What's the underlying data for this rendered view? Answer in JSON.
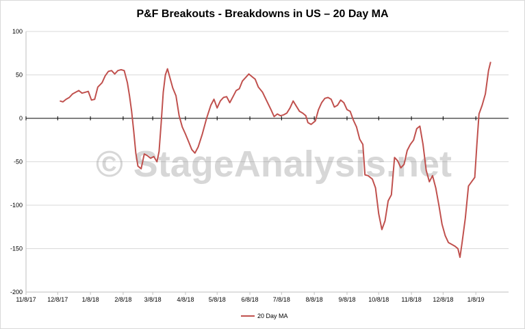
{
  "chart_data": {
    "type": "line",
    "title": "P&F Breakouts - Breakdowns in US – 20 Day MA",
    "xlabel": "",
    "ylabel": "",
    "ylim": [
      -200,
      100
    ],
    "yticks": [
      100,
      50,
      0,
      -50,
      -100,
      -150,
      -200
    ],
    "xticks": [
      "11/8/17",
      "12/8/17",
      "1/8/18",
      "2/8/18",
      "3/8/18",
      "4/8/18",
      "5/8/18",
      "6/8/18",
      "7/8/18",
      "8/8/18",
      "9/8/18",
      "10/8/18",
      "11/8/18",
      "12/8/18",
      "1/8/19"
    ],
    "xlim": [
      "2017-11-08",
      "2019-02-08"
    ],
    "gridlines": "horizontal",
    "legend_position": "bottom",
    "series": [
      {
        "name": "20 Day MA",
        "color": "#c0504d",
        "points": [
          [
            "2017-12-10",
            20
          ],
          [
            "2017-12-13",
            19
          ],
          [
            "2017-12-16",
            22
          ],
          [
            "2017-12-19",
            24
          ],
          [
            "2017-12-22",
            28
          ],
          [
            "2017-12-25",
            30
          ],
          [
            "2017-12-28",
            32
          ],
          [
            "2017-12-31",
            29
          ],
          [
            "2018-01-03",
            30
          ],
          [
            "2018-01-06",
            31
          ],
          [
            "2018-01-09",
            21
          ],
          [
            "2018-01-12",
            22
          ],
          [
            "2018-01-15",
            36
          ],
          [
            "2018-01-19",
            41
          ],
          [
            "2018-01-22",
            49
          ],
          [
            "2018-01-25",
            54
          ],
          [
            "2018-01-28",
            55
          ],
          [
            "2018-01-31",
            51
          ],
          [
            "2018-02-03",
            55
          ],
          [
            "2018-02-06",
            56
          ],
          [
            "2018-02-09",
            55
          ],
          [
            "2018-02-12",
            41
          ],
          [
            "2018-02-14",
            26
          ],
          [
            "2018-02-16",
            8
          ],
          [
            "2018-02-18",
            -15
          ],
          [
            "2018-02-20",
            -40
          ],
          [
            "2018-02-22",
            -55
          ],
          [
            "2018-02-25",
            -58
          ],
          [
            "2018-02-28",
            -41
          ],
          [
            "2018-03-03",
            -43
          ],
          [
            "2018-03-06",
            -46
          ],
          [
            "2018-03-09",
            -44
          ],
          [
            "2018-03-12",
            -50
          ],
          [
            "2018-03-14",
            -38
          ],
          [
            "2018-03-16",
            -5
          ],
          [
            "2018-03-18",
            30
          ],
          [
            "2018-03-20",
            50
          ],
          [
            "2018-03-22",
            57
          ],
          [
            "2018-03-24",
            48
          ],
          [
            "2018-03-27",
            35
          ],
          [
            "2018-03-30",
            26
          ],
          [
            "2018-04-02",
            3
          ],
          [
            "2018-04-05",
            -10
          ],
          [
            "2018-04-08",
            -18
          ],
          [
            "2018-04-11",
            -27
          ],
          [
            "2018-04-14",
            -36
          ],
          [
            "2018-04-17",
            -40
          ],
          [
            "2018-04-20",
            -33
          ],
          [
            "2018-04-24",
            -18
          ],
          [
            "2018-04-28",
            0
          ],
          [
            "2018-05-02",
            15
          ],
          [
            "2018-05-05",
            22
          ],
          [
            "2018-05-08",
            12
          ],
          [
            "2018-05-11",
            20
          ],
          [
            "2018-05-14",
            24
          ],
          [
            "2018-05-17",
            25
          ],
          [
            "2018-05-20",
            18
          ],
          [
            "2018-05-23",
            25
          ],
          [
            "2018-05-26",
            32
          ],
          [
            "2018-05-29",
            34
          ],
          [
            "2018-06-01",
            43
          ],
          [
            "2018-06-04",
            47
          ],
          [
            "2018-06-07",
            51
          ],
          [
            "2018-06-10",
            48
          ],
          [
            "2018-06-13",
            45
          ],
          [
            "2018-06-16",
            36
          ],
          [
            "2018-06-20",
            30
          ],
          [
            "2018-06-24",
            20
          ],
          [
            "2018-06-28",
            10
          ],
          [
            "2018-07-01",
            2
          ],
          [
            "2018-07-04",
            5
          ],
          [
            "2018-07-07",
            3
          ],
          [
            "2018-07-10",
            4
          ],
          [
            "2018-07-13",
            6
          ],
          [
            "2018-07-16",
            12
          ],
          [
            "2018-07-19",
            20
          ],
          [
            "2018-07-22",
            14
          ],
          [
            "2018-07-25",
            8
          ],
          [
            "2018-07-28",
            6
          ],
          [
            "2018-07-31",
            3
          ],
          [
            "2018-08-02",
            -5
          ],
          [
            "2018-08-05",
            -7
          ],
          [
            "2018-08-09",
            -3
          ],
          [
            "2018-08-12",
            10
          ],
          [
            "2018-08-15",
            18
          ],
          [
            "2018-08-18",
            23
          ],
          [
            "2018-08-21",
            24
          ],
          [
            "2018-08-24",
            22
          ],
          [
            "2018-08-27",
            13
          ],
          [
            "2018-08-30",
            15
          ],
          [
            "2018-09-02",
            21
          ],
          [
            "2018-09-05",
            18
          ],
          [
            "2018-09-08",
            10
          ],
          [
            "2018-09-11",
            8
          ],
          [
            "2018-09-14",
            -2
          ],
          [
            "2018-09-17",
            -10
          ],
          [
            "2018-09-20",
            -24
          ],
          [
            "2018-09-23",
            -30
          ],
          [
            "2018-09-25",
            -65
          ],
          [
            "2018-09-28",
            -66
          ],
          [
            "2018-10-02",
            -70
          ],
          [
            "2018-10-05",
            -80
          ],
          [
            "2018-10-08",
            -110
          ],
          [
            "2018-10-11",
            -128
          ],
          [
            "2018-10-14",
            -118
          ],
          [
            "2018-10-17",
            -95
          ],
          [
            "2018-10-20",
            -88
          ],
          [
            "2018-10-23",
            -45
          ],
          [
            "2018-10-26",
            -49
          ],
          [
            "2018-10-29",
            -57
          ],
          [
            "2018-11-01",
            -53
          ],
          [
            "2018-11-04",
            -37
          ],
          [
            "2018-11-07",
            -30
          ],
          [
            "2018-11-10",
            -25
          ],
          [
            "2018-11-13",
            -12
          ],
          [
            "2018-11-16",
            -9
          ],
          [
            "2018-11-19",
            -30
          ],
          [
            "2018-11-22",
            -60
          ],
          [
            "2018-11-25",
            -73
          ],
          [
            "2018-11-28",
            -66
          ],
          [
            "2018-12-01",
            -80
          ],
          [
            "2018-12-04",
            -100
          ],
          [
            "2018-12-07",
            -122
          ],
          [
            "2018-12-10",
            -135
          ],
          [
            "2018-12-13",
            -143
          ],
          [
            "2018-12-16",
            -145
          ],
          [
            "2018-12-19",
            -147
          ],
          [
            "2018-12-22",
            -150
          ],
          [
            "2018-12-24",
            -160
          ],
          [
            "2018-12-26",
            -143
          ],
          [
            "2018-12-29",
            -115
          ],
          [
            "2019-01-01",
            -78
          ],
          [
            "2019-01-04",
            -73
          ],
          [
            "2019-01-07",
            -68
          ],
          [
            "2019-01-09",
            -30
          ],
          [
            "2019-01-11",
            5
          ],
          [
            "2019-01-14",
            15
          ],
          [
            "2019-01-17",
            28
          ],
          [
            "2019-01-20",
            55
          ],
          [
            "2019-01-22",
            65
          ]
        ]
      }
    ],
    "watermark": "© StageAnalysis.net"
  }
}
